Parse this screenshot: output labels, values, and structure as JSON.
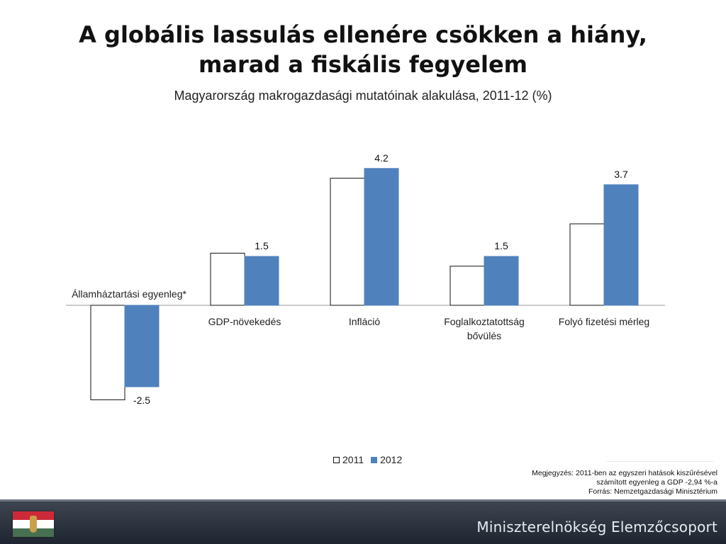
{
  "title": {
    "line1": "A globális lassulás ellenére csökken a hiány,",
    "line2": "marad a fiskális fegyelem"
  },
  "subtitle": "Magyarország makrogazdasági mutatóinak alakulása, 2011-12 (%)",
  "chart_data": {
    "type": "bar",
    "categories": [
      "Államháztartási egyenleg*",
      "GDP-növekedés",
      "Infláció",
      "Foglalkoztatottság bővülés",
      "Folyó fizetési mérleg"
    ],
    "category_lines": [
      [
        "Államháztartási egyenleg*"
      ],
      [
        "GDP-növekedés"
      ],
      [
        "Infláció"
      ],
      [
        "Foglalkoztatottság",
        "bővülés"
      ],
      [
        "Folyó fizetési mérleg"
      ]
    ],
    "series": [
      {
        "name": "2011",
        "values": [
          -2.9,
          1.6,
          3.9,
          1.2,
          2.5
        ],
        "color": "#ffffff",
        "stroke": "#111111"
      },
      {
        "name": "2012",
        "values": [
          -2.5,
          1.5,
          4.2,
          1.5,
          3.7
        ],
        "color": "#4f81bd",
        "stroke": "#4f81bd"
      }
    ],
    "data_labels": [
      "-2.5",
      "1.5",
      "4.2",
      "1.5",
      "3.7"
    ],
    "data_label_series": "2012",
    "legend_position": "bottom",
    "grid": false
  },
  "legend": {
    "item1": "2011",
    "item2": "2012"
  },
  "note": {
    "label": "Megjegyzés:",
    "text1": "2011-ben az egyszeri hatások kiszűrésével",
    "text2": "számított egyenleg a GDP -2,94 %-a",
    "source": "Forrás: Nemzetgazdasági Minisztérium"
  },
  "footer": {
    "org": "Miniszterelnökség Elemzőcsoport"
  },
  "colors": {
    "accent": "#4f81bd",
    "footer_bg": "#2b313b"
  }
}
